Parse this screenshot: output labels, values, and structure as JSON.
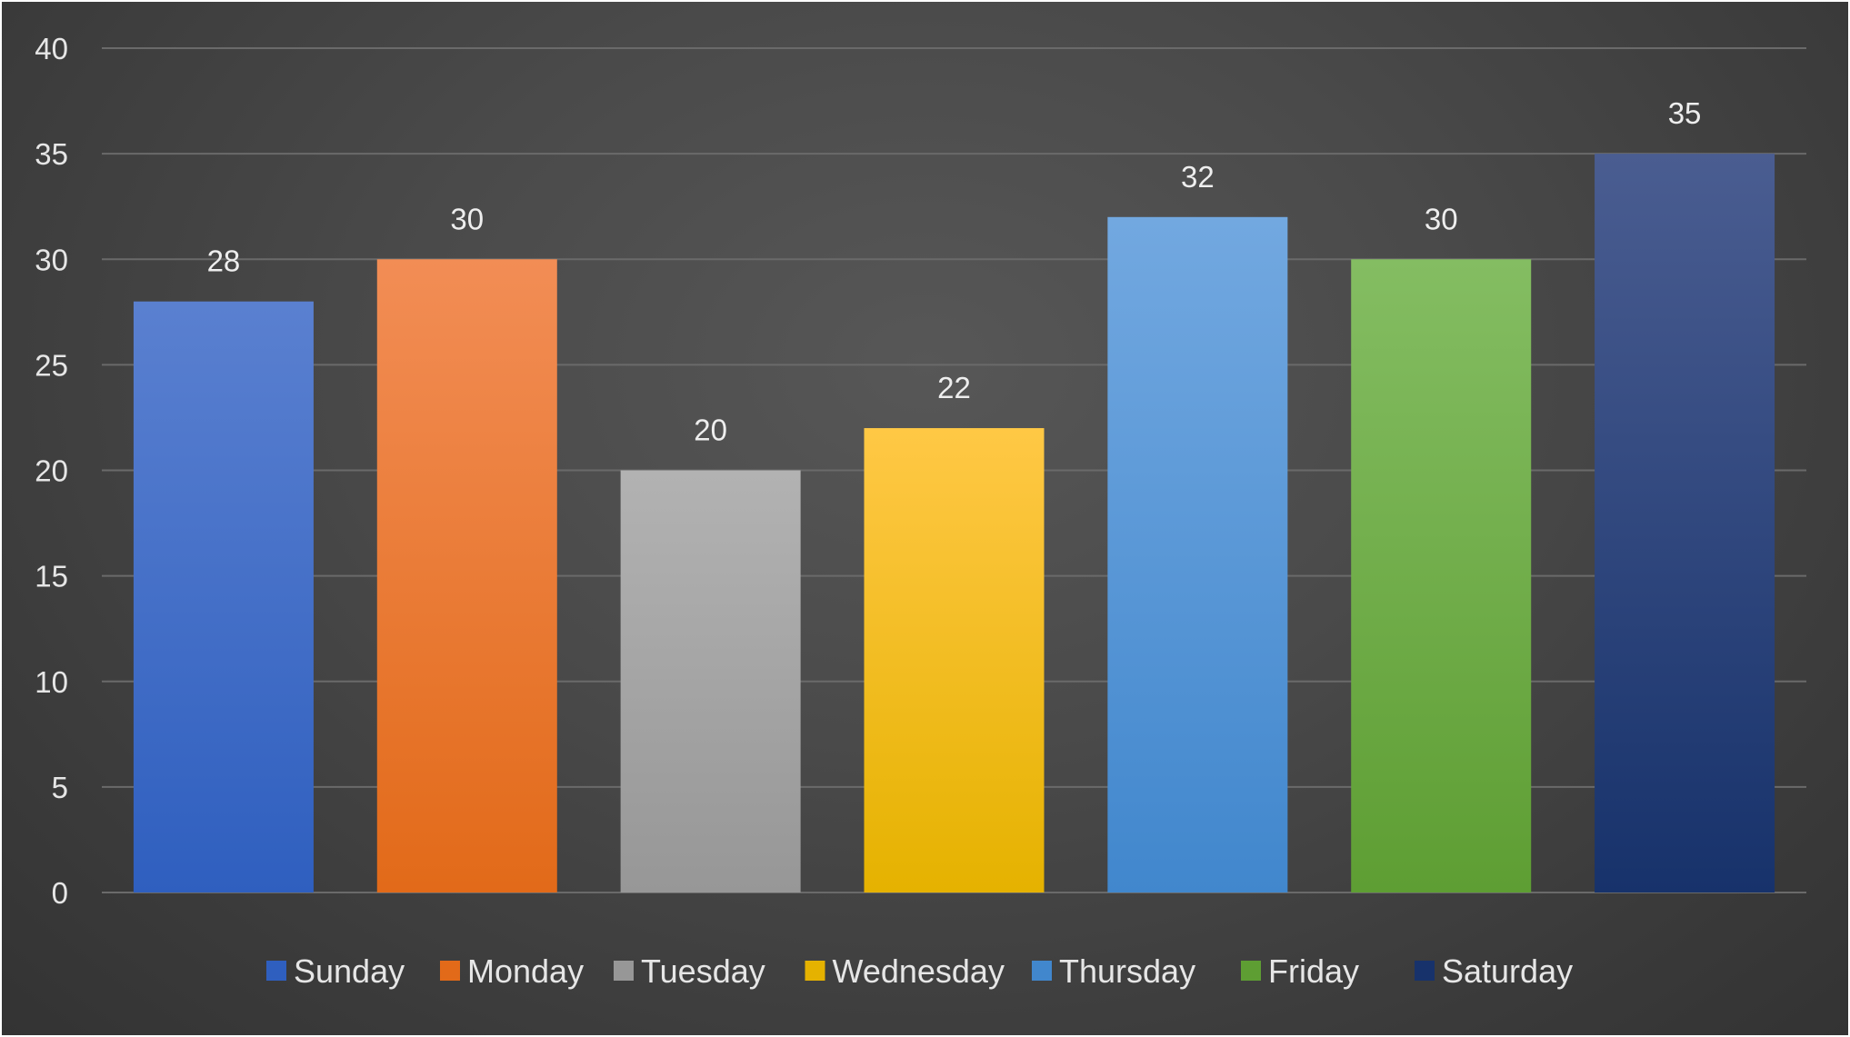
{
  "chart_data": {
    "type": "bar",
    "categories": [
      "Sunday",
      "Monday",
      "Tuesday",
      "Wednesday",
      "Thursday",
      "Friday",
      "Saturday"
    ],
    "values": [
      28,
      30,
      20,
      22,
      32,
      30,
      35
    ],
    "colors": [
      [
        "#5a80d0",
        "#2f5fbf"
      ],
      [
        "#f28d55",
        "#e26a19"
      ],
      [
        "#b2b2b2",
        "#979797"
      ],
      [
        "#ffc845",
        "#e5b200"
      ],
      [
        "#72a8e0",
        "#4187cd"
      ],
      [
        "#84bd62",
        "#5e9e33"
      ],
      [
        "#4a5d91",
        "#17326b"
      ]
    ],
    "ylim": [
      0,
      40
    ],
    "yticks": [
      0,
      5,
      10,
      15,
      20,
      25,
      30,
      35,
      40
    ],
    "grid": true,
    "data_labels": true,
    "legend_position": "bottom",
    "title": "",
    "xlabel": "",
    "ylabel": ""
  }
}
